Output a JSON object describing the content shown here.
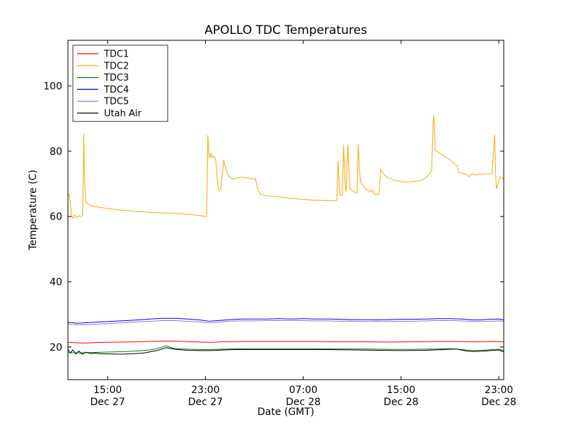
{
  "chart_data": {
    "type": "line",
    "title": "APOLLO TDC Temperatures",
    "xlabel": "Date (GMT)",
    "ylabel": "Temperature (C)",
    "x_unit": "hours since Dec 27 00:00 GMT",
    "xlim": [
      11.75,
      47.4
    ],
    "ylim": [
      10,
      114
    ],
    "yticks": [
      20,
      40,
      60,
      80,
      100
    ],
    "xticks": [
      {
        "value": 15,
        "time": "15:00",
        "date": "Dec 27"
      },
      {
        "value": 23,
        "time": "23:00",
        "date": "Dec 27"
      },
      {
        "value": 31,
        "time": "07:00",
        "date": "Dec 28"
      },
      {
        "value": 39,
        "time": "15:00",
        "date": "Dec 28"
      },
      {
        "value": 47,
        "time": "23:00",
        "date": "Dec 28"
      }
    ],
    "legend_position": "upper left",
    "grid": false,
    "series": [
      {
        "name": "TDC1",
        "color": "#ff0000",
        "points": [
          [
            11.75,
            21.4
          ],
          [
            13,
            21.2
          ],
          [
            14.5,
            21.4
          ],
          [
            16,
            21.5
          ],
          [
            17.5,
            21.6
          ],
          [
            19,
            21.8
          ],
          [
            20.5,
            21.8
          ],
          [
            22,
            21.6
          ],
          [
            23.3,
            21.4
          ],
          [
            24.5,
            21.6
          ],
          [
            26,
            21.7
          ],
          [
            28,
            21.7
          ],
          [
            30,
            21.7
          ],
          [
            32,
            21.7
          ],
          [
            34,
            21.6
          ],
          [
            36,
            21.6
          ],
          [
            38,
            21.5
          ],
          [
            40,
            21.6
          ],
          [
            42,
            21.7
          ],
          [
            43.5,
            21.7
          ],
          [
            45,
            21.6
          ],
          [
            46.5,
            21.7
          ],
          [
            47.4,
            21.6
          ]
        ]
      },
      {
        "name": "TDC2",
        "color": "#ffa500",
        "points": [
          [
            11.75,
            66.5
          ],
          [
            11.85,
            66.8
          ],
          [
            11.95,
            64
          ],
          [
            12.05,
            60
          ],
          [
            12.15,
            59.5
          ],
          [
            12.3,
            60.5
          ],
          [
            12.45,
            59.6
          ],
          [
            12.6,
            60.2
          ],
          [
            12.8,
            60
          ],
          [
            12.95,
            60.2
          ],
          [
            13.05,
            85.5
          ],
          [
            13.1,
            72
          ],
          [
            13.2,
            64.5
          ],
          [
            13.4,
            63.8
          ],
          [
            13.7,
            63.2
          ],
          [
            14,
            63
          ],
          [
            14.5,
            62.7
          ],
          [
            15,
            62.5
          ],
          [
            15.5,
            62.2
          ],
          [
            16,
            62
          ],
          [
            16.5,
            61.8
          ],
          [
            17,
            61.6
          ],
          [
            17.5,
            61.5
          ],
          [
            18,
            61.4
          ],
          [
            18.5,
            61.3
          ],
          [
            19,
            61.2
          ],
          [
            19.5,
            61.1
          ],
          [
            20,
            61
          ],
          [
            20.5,
            60.9
          ],
          [
            21,
            60.8
          ],
          [
            21.5,
            60.7
          ],
          [
            22,
            60.5
          ],
          [
            22.5,
            60.3
          ],
          [
            22.8,
            60.1
          ],
          [
            23.1,
            60
          ],
          [
            23.2,
            85
          ],
          [
            23.28,
            79
          ],
          [
            23.35,
            78
          ],
          [
            23.45,
            79.5
          ],
          [
            23.55,
            78
          ],
          [
            23.7,
            78.5
          ],
          [
            23.85,
            77
          ],
          [
            24,
            70
          ],
          [
            24.1,
            68
          ],
          [
            24.25,
            68.5
          ],
          [
            24.5,
            77.5
          ],
          [
            24.6,
            75.5
          ],
          [
            24.8,
            73
          ],
          [
            25,
            72
          ],
          [
            25.3,
            71.5
          ],
          [
            25.6,
            71.8
          ],
          [
            26,
            72
          ],
          [
            26.4,
            71.8
          ],
          [
            26.8,
            71.6
          ],
          [
            27.1,
            71.4
          ],
          [
            27.3,
            68
          ],
          [
            27.5,
            66.8
          ],
          [
            27.8,
            66.5
          ],
          [
            28.2,
            66.3
          ],
          [
            28.6,
            66.2
          ],
          [
            29,
            66
          ],
          [
            29.5,
            65.8
          ],
          [
            30,
            65.6
          ],
          [
            30.5,
            65.4
          ],
          [
            31,
            65.2
          ],
          [
            31.5,
            65.1
          ],
          [
            32,
            65
          ],
          [
            32.5,
            65
          ],
          [
            33,
            64.9
          ],
          [
            33.5,
            64.9
          ],
          [
            33.75,
            64.9
          ],
          [
            33.85,
            77
          ],
          [
            33.95,
            69
          ],
          [
            34.05,
            66.5
          ],
          [
            34.2,
            66.5
          ],
          [
            34.3,
            82
          ],
          [
            34.4,
            71
          ],
          [
            34.5,
            67.5
          ],
          [
            34.65,
            82
          ],
          [
            34.75,
            73
          ],
          [
            34.85,
            68.5
          ],
          [
            35,
            68
          ],
          [
            35.2,
            67.5
          ],
          [
            35.4,
            67.2
          ],
          [
            35.5,
            82
          ],
          [
            35.6,
            74
          ],
          [
            35.7,
            70.5
          ],
          [
            35.9,
            69.5
          ],
          [
            36.1,
            68.5
          ],
          [
            36.3,
            68
          ],
          [
            36.5,
            67.6
          ],
          [
            36.65,
            68.2
          ],
          [
            36.8,
            67
          ],
          [
            37,
            66.6
          ],
          [
            37.2,
            66.8
          ],
          [
            37.35,
            74.5
          ],
          [
            37.5,
            73.5
          ],
          [
            37.7,
            72.5
          ],
          [
            37.9,
            72
          ],
          [
            38.2,
            71.5
          ],
          [
            38.6,
            71
          ],
          [
            39,
            70.7
          ],
          [
            39.4,
            70.5
          ],
          [
            39.8,
            70.6
          ],
          [
            40.2,
            70.8
          ],
          [
            40.6,
            71
          ],
          [
            40.9,
            71.5
          ],
          [
            41.2,
            72.5
          ],
          [
            41.5,
            74
          ],
          [
            41.65,
            91
          ],
          [
            41.72,
            88
          ],
          [
            41.8,
            80.5
          ],
          [
            42,
            79.8
          ],
          [
            42.2,
            79.2
          ],
          [
            42.4,
            79
          ],
          [
            42.6,
            78.2
          ],
          [
            42.8,
            78
          ],
          [
            43.1,
            77
          ],
          [
            43.4,
            76
          ],
          [
            43.6,
            75.5
          ],
          [
            43.7,
            73.5
          ],
          [
            44,
            73.2
          ],
          [
            44.3,
            73
          ],
          [
            44.55,
            72.2
          ],
          [
            44.8,
            73
          ],
          [
            45.1,
            72.8
          ],
          [
            45.4,
            73
          ],
          [
            45.7,
            72.9
          ],
          [
            46,
            73.1
          ],
          [
            46.3,
            73
          ],
          [
            46.45,
            73.2
          ],
          [
            46.65,
            85
          ],
          [
            46.75,
            72
          ],
          [
            46.8,
            68.5
          ],
          [
            46.95,
            70
          ],
          [
            47.1,
            72
          ],
          [
            47.25,
            71.8
          ],
          [
            47.4,
            71.3
          ]
        ]
      },
      {
        "name": "TDC3",
        "color": "#008000",
        "points": [
          [
            11.75,
            18.3
          ],
          [
            12.5,
            18.2
          ],
          [
            13.5,
            18.3
          ],
          [
            14.5,
            18.4
          ],
          [
            15.5,
            18.5
          ],
          [
            16.5,
            18.6
          ],
          [
            17.5,
            18.8
          ],
          [
            18.5,
            19.1
          ],
          [
            19.3,
            19.8
          ],
          [
            19.8,
            20.4
          ],
          [
            20.3,
            19.7
          ],
          [
            21,
            19.4
          ],
          [
            22,
            19.3
          ],
          [
            23,
            19.2
          ],
          [
            24,
            19.3
          ],
          [
            25,
            19.4
          ],
          [
            26,
            19.5
          ],
          [
            28,
            19.5
          ],
          [
            30,
            19.5
          ],
          [
            32,
            19.5
          ],
          [
            34,
            19.4
          ],
          [
            36,
            19.4
          ],
          [
            38,
            19.3
          ],
          [
            40,
            19.3
          ],
          [
            42,
            19.4
          ],
          [
            43,
            19.5
          ],
          [
            44,
            19.2
          ],
          [
            44.8,
            18.9
          ],
          [
            45.6,
            19
          ],
          [
            46.5,
            19.2
          ],
          [
            47,
            19.3
          ],
          [
            47.4,
            18.9
          ]
        ]
      },
      {
        "name": "TDC4",
        "color": "#0000ff",
        "points": [
          [
            11.75,
            27.6
          ],
          [
            12.5,
            27.3
          ],
          [
            13.5,
            27.5
          ],
          [
            14.5,
            27.7
          ],
          [
            15.5,
            27.9
          ],
          [
            16.5,
            28.1
          ],
          [
            17.5,
            28.3
          ],
          [
            18.5,
            28.6
          ],
          [
            19.5,
            28.8
          ],
          [
            20.5,
            28.8
          ],
          [
            21.5,
            28.6
          ],
          [
            22.5,
            28.3
          ],
          [
            23.3,
            27.9
          ],
          [
            24,
            28.1
          ],
          [
            25,
            28.4
          ],
          [
            26,
            28.6
          ],
          [
            27,
            28.6
          ],
          [
            28,
            28.6
          ],
          [
            29,
            28.7
          ],
          [
            30,
            28.6
          ],
          [
            31,
            28.7
          ],
          [
            32,
            28.6
          ],
          [
            33,
            28.6
          ],
          [
            34,
            28.5
          ],
          [
            35,
            28.4
          ],
          [
            36,
            28.4
          ],
          [
            37,
            28.3
          ],
          [
            38,
            28.4
          ],
          [
            39,
            28.5
          ],
          [
            40,
            28.5
          ],
          [
            41,
            28.6
          ],
          [
            42,
            28.7
          ],
          [
            43,
            28.7
          ],
          [
            44,
            28.6
          ],
          [
            44.8,
            28.3
          ],
          [
            45.5,
            28.3
          ],
          [
            46.2,
            28.5
          ],
          [
            47,
            28.6
          ],
          [
            47.4,
            28.3
          ]
        ]
      },
      {
        "name": "TDC5",
        "color": "#9370db",
        "points": [
          [
            11.75,
            27.1
          ],
          [
            12.5,
            26.8
          ],
          [
            13.5,
            26.9
          ],
          [
            14.5,
            27.1
          ],
          [
            15.5,
            27.3
          ],
          [
            16.5,
            27.5
          ],
          [
            17.5,
            27.7
          ],
          [
            18.5,
            27.9
          ],
          [
            19.5,
            28.1
          ],
          [
            20.5,
            28.1
          ],
          [
            21.5,
            27.9
          ],
          [
            22.5,
            27.7
          ],
          [
            23.3,
            27.4
          ],
          [
            24,
            27.6
          ],
          [
            25,
            27.9
          ],
          [
            26,
            28
          ],
          [
            27,
            28
          ],
          [
            28,
            28.1
          ],
          [
            29,
            28.1
          ],
          [
            30,
            28.1
          ],
          [
            31,
            28.1
          ],
          [
            32,
            28
          ],
          [
            33,
            28
          ],
          [
            34,
            27.9
          ],
          [
            35,
            27.9
          ],
          [
            36,
            27.8
          ],
          [
            37,
            27.8
          ],
          [
            38,
            27.8
          ],
          [
            39,
            27.9
          ],
          [
            40,
            27.9
          ],
          [
            41,
            28
          ],
          [
            42,
            28.1
          ],
          [
            43,
            28.1
          ],
          [
            44,
            28
          ],
          [
            44.8,
            27.8
          ],
          [
            45.5,
            27.8
          ],
          [
            46.2,
            27.9
          ],
          [
            47,
            28
          ],
          [
            47.4,
            27.8
          ]
        ]
      },
      {
        "name": "Utah Air",
        "color": "#000000",
        "points": [
          [
            11.75,
            19.2
          ],
          [
            11.95,
            18.2
          ],
          [
            12.15,
            19.1
          ],
          [
            12.4,
            17.9
          ],
          [
            12.65,
            18.8
          ],
          [
            12.9,
            17.8
          ],
          [
            13.2,
            18.4
          ],
          [
            13.6,
            18
          ],
          [
            14,
            18.1
          ],
          [
            14.5,
            17.9
          ],
          [
            15,
            17.9
          ],
          [
            16,
            17.8
          ],
          [
            17,
            17.9
          ],
          [
            18,
            18.2
          ],
          [
            19,
            18.9
          ],
          [
            19.8,
            19.8
          ],
          [
            20.5,
            19.3
          ],
          [
            21.5,
            19
          ],
          [
            22.5,
            18.9
          ],
          [
            23.5,
            18.9
          ],
          [
            24.5,
            19.1
          ],
          [
            25.5,
            19.2
          ],
          [
            27,
            19.2
          ],
          [
            29,
            19.2
          ],
          [
            31,
            19.2
          ],
          [
            33,
            19.2
          ],
          [
            35,
            19.1
          ],
          [
            37,
            19
          ],
          [
            39,
            18.9
          ],
          [
            41,
            19
          ],
          [
            42.5,
            19.2
          ],
          [
            43.5,
            19.4
          ],
          [
            44.3,
            18.8
          ],
          [
            45,
            18.6
          ],
          [
            46,
            18.8
          ],
          [
            47,
            19.1
          ],
          [
            47.4,
            18.5
          ]
        ]
      }
    ]
  }
}
